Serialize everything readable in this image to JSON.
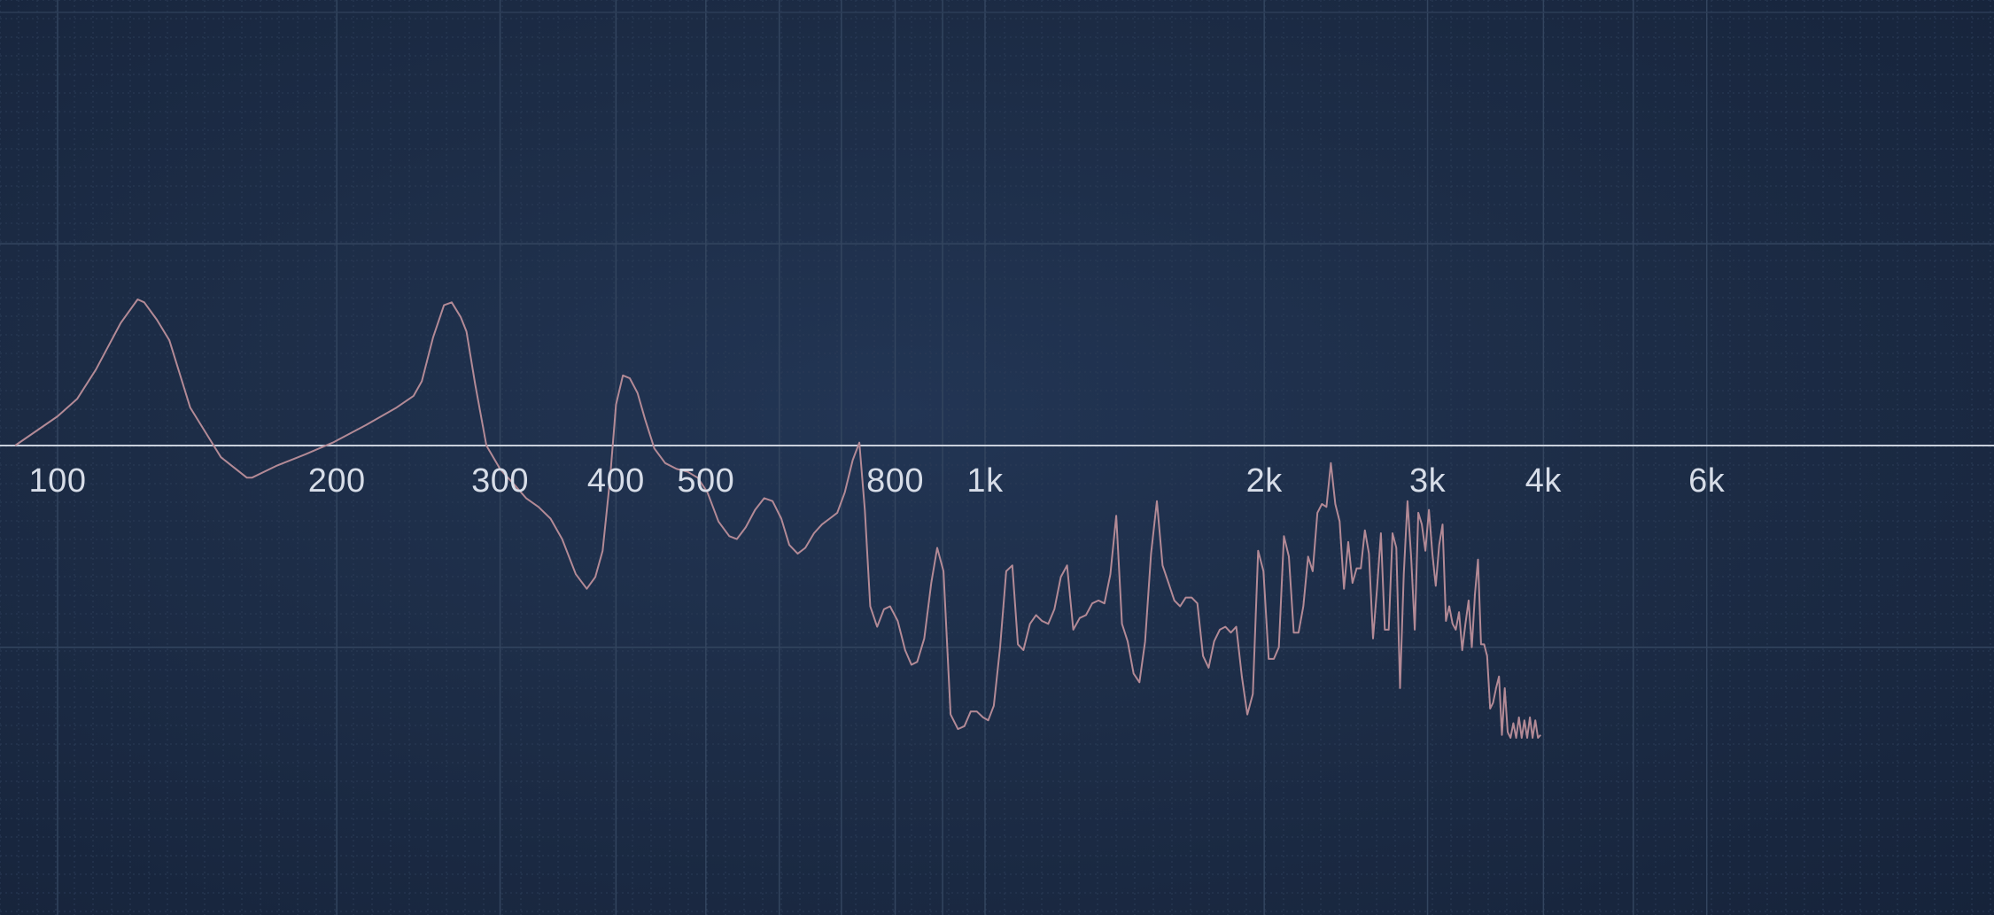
{
  "chart_data": {
    "type": "line",
    "title": "",
    "xlabel": "",
    "ylabel": "",
    "x_scale": "log",
    "xlim": [
      90,
      6500
    ],
    "ylim": [
      -1,
      1
    ],
    "grid": true,
    "zero_line": true,
    "x_tick_labels": [
      {
        "freq": 100,
        "label": "100"
      },
      {
        "freq": 200,
        "label": "200"
      },
      {
        "freq": 300,
        "label": "300"
      },
      {
        "freq": 400,
        "label": "400"
      },
      {
        "freq": 500,
        "label": "500"
      },
      {
        "freq": 800,
        "label": "800"
      },
      {
        "freq": 1000,
        "label": "1k"
      },
      {
        "freq": 2000,
        "label": "2k"
      },
      {
        "freq": 3000,
        "label": "3k"
      },
      {
        "freq": 4000,
        "label": "4k"
      },
      {
        "freq": 6000,
        "label": "6k"
      }
    ],
    "series": [
      {
        "color": "#b38a96",
        "points": [
          [
            90,
            0.0
          ],
          [
            100,
            0.1
          ],
          [
            105,
            0.16
          ],
          [
            110,
            0.26
          ],
          [
            117,
            0.42
          ],
          [
            122,
            0.5
          ],
          [
            124,
            0.49
          ],
          [
            128,
            0.43
          ],
          [
            132,
            0.36
          ],
          [
            139,
            0.13
          ],
          [
            150,
            -0.04
          ],
          [
            160,
            -0.11
          ],
          [
            162,
            -0.11
          ],
          [
            172,
            -0.07
          ],
          [
            185,
            -0.03
          ],
          [
            198,
            0.01
          ],
          [
            215,
            0.07
          ],
          [
            232,
            0.13
          ],
          [
            242,
            0.17
          ],
          [
            247,
            0.22
          ],
          [
            254,
            0.37
          ],
          [
            261,
            0.48
          ],
          [
            266,
            0.49
          ],
          [
            272,
            0.44
          ],
          [
            276,
            0.39
          ],
          [
            282,
            0.21
          ],
          [
            290,
            0.0
          ],
          [
            300,
            -0.08
          ],
          [
            310,
            -0.13
          ],
          [
            320,
            -0.18
          ],
          [
            330,
            -0.21
          ],
          [
            340,
            -0.25
          ],
          [
            350,
            -0.32
          ],
          [
            362,
            -0.44
          ],
          [
            372,
            -0.49
          ],
          [
            380,
            -0.45
          ],
          [
            387,
            -0.36
          ],
          [
            394,
            -0.12
          ],
          [
            400,
            0.14
          ],
          [
            407,
            0.24
          ],
          [
            414,
            0.23
          ],
          [
            422,
            0.18
          ],
          [
            430,
            0.09
          ],
          [
            440,
            -0.01
          ],
          [
            452,
            -0.06
          ],
          [
            465,
            -0.08
          ],
          [
            478,
            -0.09
          ],
          [
            490,
            -0.11
          ],
          [
            502,
            -0.16
          ],
          [
            516,
            -0.26
          ],
          [
            530,
            -0.31
          ],
          [
            540,
            -0.32
          ],
          [
            552,
            -0.28
          ],
          [
            565,
            -0.22
          ],
          [
            578,
            -0.18
          ],
          [
            590,
            -0.19
          ],
          [
            603,
            -0.25
          ],
          [
            615,
            -0.34
          ],
          [
            628,
            -0.37
          ],
          [
            640,
            -0.35
          ],
          [
            654,
            -0.3
          ],
          [
            667,
            -0.27
          ],
          [
            680,
            -0.25
          ],
          [
            693,
            -0.23
          ],
          [
            706,
            -0.16
          ],
          [
            720,
            -0.05
          ],
          [
            732,
            0.01
          ],
          [
            742,
            -0.22
          ],
          [
            752,
            -0.55
          ],
          [
            765,
            -0.62
          ],
          [
            778,
            -0.56
          ],
          [
            790,
            -0.55
          ],
          [
            805,
            -0.6
          ],
          [
            820,
            -0.7
          ],
          [
            833,
            -0.75
          ],
          [
            845,
            -0.74
          ],
          [
            860,
            -0.66
          ],
          [
            875,
            -0.47
          ],
          [
            888,
            -0.35
          ],
          [
            902,
            -0.43
          ],
          [
            918,
            -0.92
          ],
          [
            935,
            -0.97
          ],
          [
            950,
            -0.96
          ],
          [
            965,
            -0.91
          ],
          [
            980,
            -0.91
          ],
          [
            995,
            -0.93
          ],
          [
            1008,
            -0.94
          ],
          [
            1022,
            -0.89
          ],
          [
            1038,
            -0.69
          ],
          [
            1054,
            -0.43
          ],
          [
            1070,
            -0.41
          ],
          [
            1085,
            -0.68
          ],
          [
            1100,
            -0.7
          ],
          [
            1118,
            -0.61
          ],
          [
            1135,
            -0.58
          ],
          [
            1152,
            -0.6
          ],
          [
            1170,
            -0.61
          ],
          [
            1188,
            -0.56
          ],
          [
            1207,
            -0.45
          ],
          [
            1226,
            -0.41
          ],
          [
            1245,
            -0.63
          ],
          [
            1265,
            -0.59
          ],
          [
            1285,
            -0.58
          ],
          [
            1305,
            -0.54
          ],
          [
            1325,
            -0.53
          ],
          [
            1345,
            -0.54
          ],
          [
            1365,
            -0.44
          ],
          [
            1385,
            -0.24
          ],
          [
            1405,
            -0.61
          ],
          [
            1425,
            -0.67
          ],
          [
            1446,
            -0.78
          ],
          [
            1467,
            -0.81
          ],
          [
            1488,
            -0.67
          ],
          [
            1510,
            -0.37
          ],
          [
            1532,
            -0.19
          ],
          [
            1554,
            -0.41
          ],
          [
            1577,
            -0.47
          ],
          [
            1600,
            -0.53
          ],
          [
            1623,
            -0.55
          ],
          [
            1646,
            -0.52
          ],
          [
            1670,
            -0.52
          ],
          [
            1694,
            -0.54
          ],
          [
            1718,
            -0.72
          ],
          [
            1742,
            -0.76
          ],
          [
            1766,
            -0.67
          ],
          [
            1791,
            -0.63
          ],
          [
            1816,
            -0.62
          ],
          [
            1841,
            -0.64
          ],
          [
            1866,
            -0.62
          ],
          [
            1892,
            -0.79
          ],
          [
            1918,
            -0.92
          ],
          [
            1944,
            -0.85
          ],
          [
            1970,
            -0.36
          ],
          [
            1996,
            -0.43
          ],
          [
            2022,
            -0.73
          ],
          [
            2048,
            -0.73
          ],
          [
            2074,
            -0.69
          ],
          [
            2100,
            -0.31
          ],
          [
            2126,
            -0.38
          ],
          [
            2152,
            -0.64
          ],
          [
            2178,
            -0.64
          ],
          [
            2204,
            -0.55
          ],
          [
            2230,
            -0.38
          ],
          [
            2256,
            -0.43
          ],
          [
            2282,
            -0.23
          ],
          [
            2308,
            -0.2
          ],
          [
            2334,
            -0.21
          ],
          [
            2360,
            -0.06
          ],
          [
            2386,
            -0.2
          ],
          [
            2412,
            -0.26
          ],
          [
            2438,
            -0.49
          ],
          [
            2464,
            -0.33
          ],
          [
            2490,
            -0.47
          ],
          [
            2516,
            -0.42
          ],
          [
            2542,
            -0.42
          ],
          [
            2568,
            -0.29
          ],
          [
            2594,
            -0.37
          ],
          [
            2620,
            -0.66
          ],
          [
            2646,
            -0.49
          ],
          [
            2672,
            -0.3
          ],
          [
            2698,
            -0.63
          ],
          [
            2724,
            -0.63
          ],
          [
            2750,
            -0.3
          ],
          [
            2776,
            -0.35
          ],
          [
            2802,
            -0.83
          ],
          [
            2828,
            -0.44
          ],
          [
            2854,
            -0.19
          ],
          [
            2880,
            -0.38
          ],
          [
            2906,
            -0.63
          ],
          [
            2932,
            -0.23
          ],
          [
            2958,
            -0.27
          ],
          [
            2984,
            -0.36
          ],
          [
            3010,
            -0.22
          ],
          [
            3036,
            -0.37
          ],
          [
            3062,
            -0.48
          ],
          [
            3088,
            -0.34
          ],
          [
            3114,
            -0.27
          ],
          [
            3140,
            -0.6
          ],
          [
            3166,
            -0.55
          ],
          [
            3192,
            -0.61
          ],
          [
            3218,
            -0.63
          ],
          [
            3244,
            -0.57
          ],
          [
            3270,
            -0.7
          ],
          [
            3296,
            -0.61
          ],
          [
            3322,
            -0.53
          ],
          [
            3348,
            -0.69
          ],
          [
            3374,
            -0.51
          ],
          [
            3400,
            -0.39
          ],
          [
            3426,
            -0.68
          ],
          [
            3452,
            -0.68
          ],
          [
            3478,
            -0.72
          ],
          [
            3504,
            -0.9
          ],
          [
            3530,
            -0.88
          ],
          [
            3556,
            -0.83
          ],
          [
            3582,
            -0.79
          ],
          [
            3608,
            -0.99
          ],
          [
            3634,
            -0.83
          ],
          [
            3660,
            -0.98
          ],
          [
            3686,
            -1.0
          ],
          [
            3712,
            -0.95
          ],
          [
            3738,
            -1.0
          ],
          [
            3764,
            -0.93
          ],
          [
            3790,
            -1.0
          ],
          [
            3816,
            -0.94
          ],
          [
            3842,
            -1.0
          ],
          [
            3868,
            -0.93
          ],
          [
            3894,
            -1.0
          ],
          [
            3920,
            -0.94
          ],
          [
            3946,
            -1.0
          ],
          [
            3972,
            -0.99
          ]
        ]
      }
    ]
  }
}
